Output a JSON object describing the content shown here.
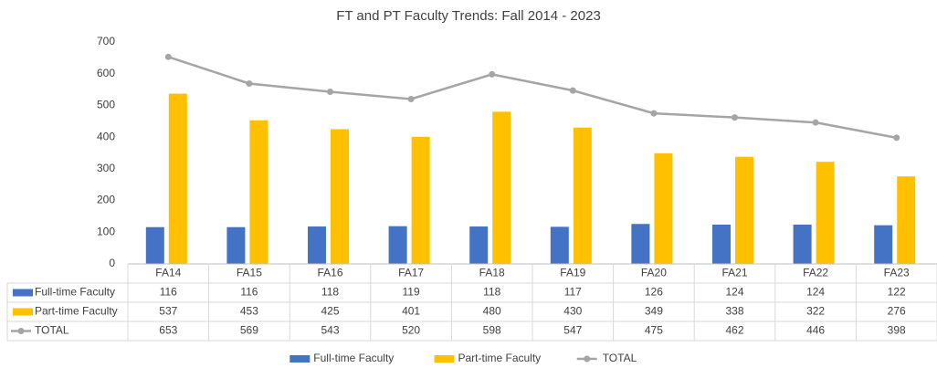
{
  "chart_data": {
    "type": "bar",
    "title": "FT and PT Faculty Trends: Fall 2014 - 2023",
    "categories": [
      "FA14",
      "FA15",
      "FA16",
      "FA17",
      "FA18",
      "FA19",
      "FA20",
      "FA21",
      "FA22",
      "FA23"
    ],
    "series": [
      {
        "name": "Full-time Faculty",
        "color": "#4472c4",
        "values": [
          116,
          116,
          118,
          119,
          118,
          117,
          126,
          124,
          124,
          122
        ]
      },
      {
        "name": "Part-time Faculty",
        "color": "#ffc000",
        "values": [
          537,
          453,
          425,
          401,
          480,
          430,
          349,
          338,
          322,
          276
        ]
      },
      {
        "name": "TOTAL",
        "color": "#a5a5a5",
        "type": "line",
        "values": [
          653,
          569,
          543,
          520,
          598,
          547,
          475,
          462,
          446,
          398
        ]
      }
    ],
    "ylim": [
      0,
      700
    ],
    "yticks": [
      0,
      100,
      200,
      300,
      400,
      500,
      600,
      700
    ],
    "grid": false,
    "legend": "bottom",
    "data_table": true
  }
}
